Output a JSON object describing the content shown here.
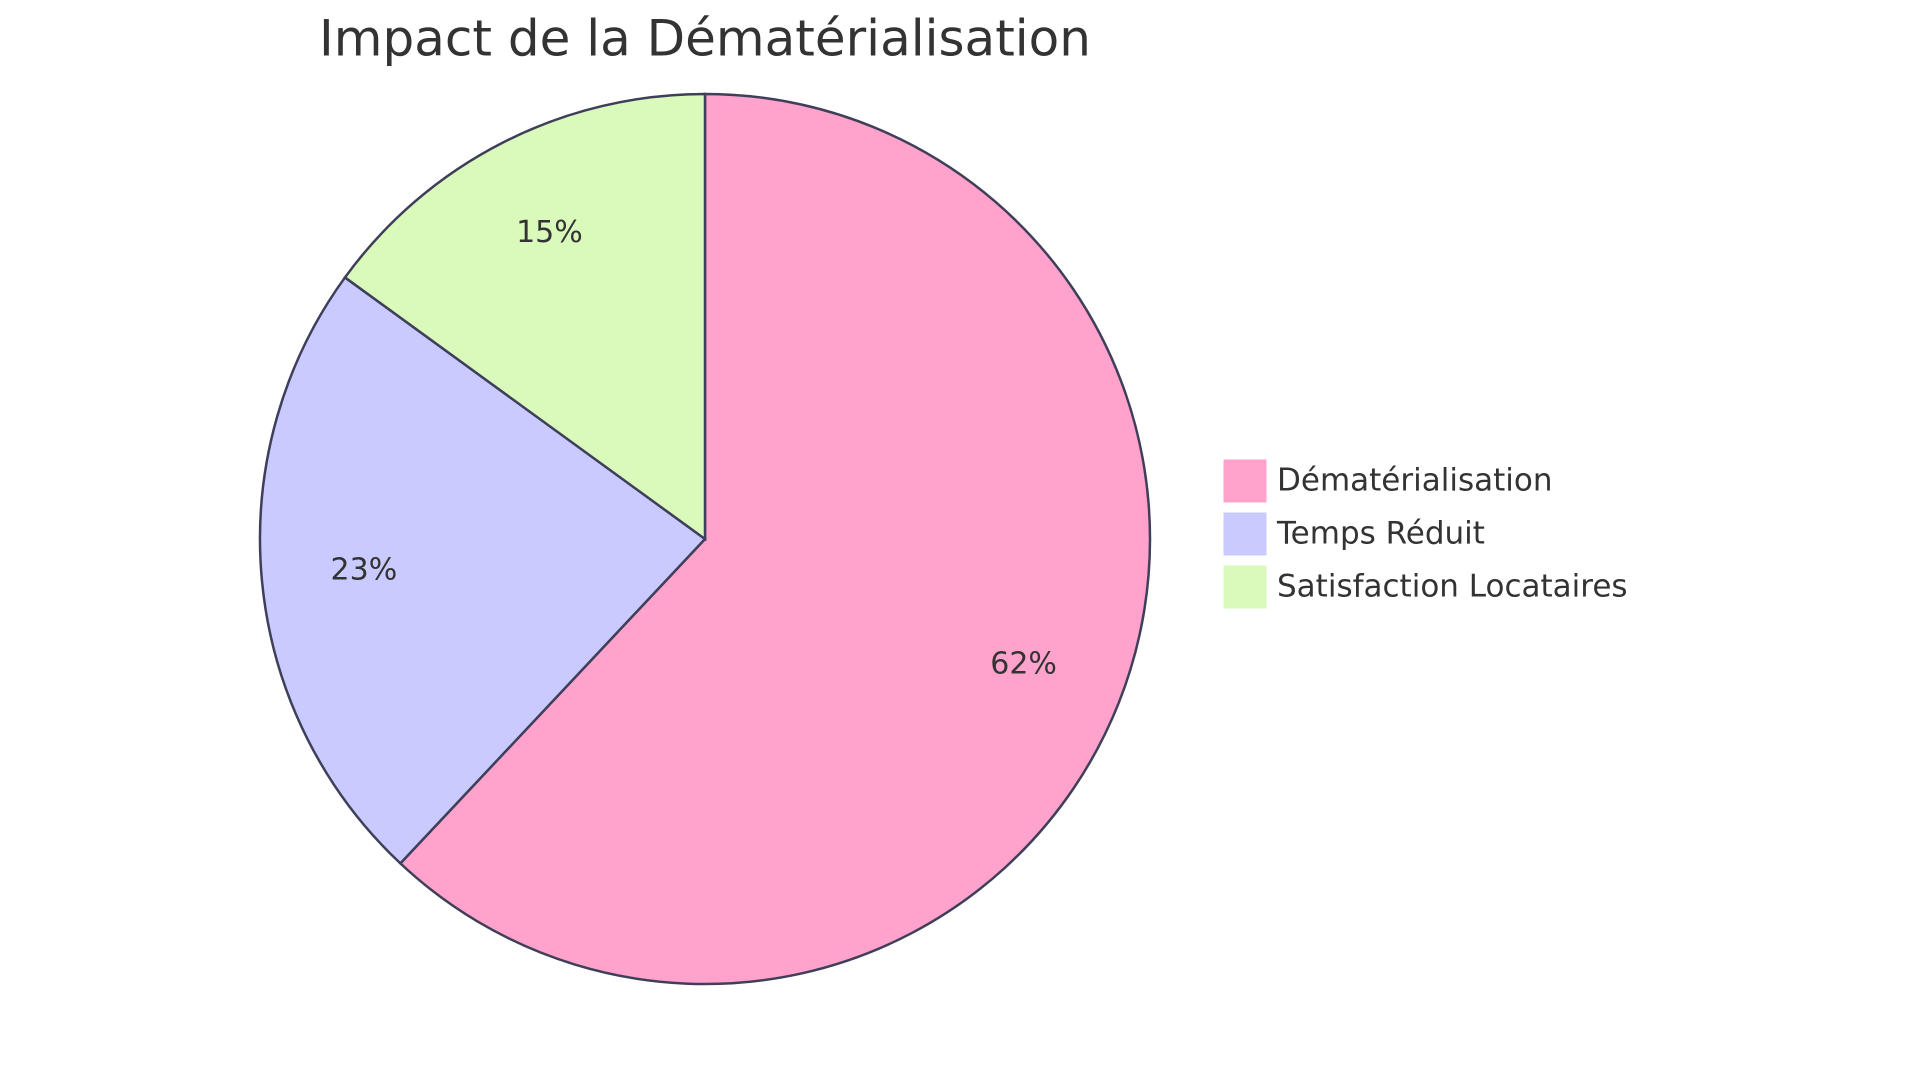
{
  "chart_data": {
    "type": "pie",
    "title": "Impact de la Dématérialisation",
    "categories": [
      "Dématérialisation",
      "Temps Réduit",
      "Satisfaction Locataires"
    ],
    "values": [
      62,
      23,
      15
    ],
    "value_labels": [
      "62%",
      "23%",
      "15%"
    ],
    "colors": [
      "#ffa3cd",
      "#c9caff",
      "#dafabc"
    ],
    "legend": "right"
  }
}
